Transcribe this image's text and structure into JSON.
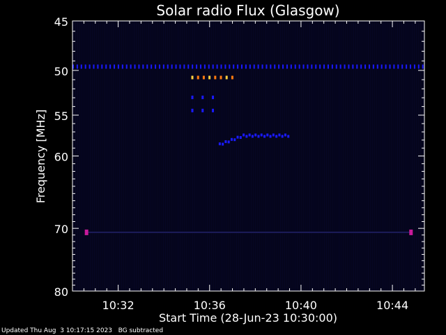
{
  "chart_data": {
    "type": "heatmap",
    "title": "Solar radio Flux (Glasgow)",
    "xlabel": "Start Time (28-Jun-23 10:30:00)",
    "ylabel": "Frequency [MHz]",
    "x_unit": "minutes after 10:30:00",
    "xlim": [
      0,
      15.4
    ],
    "ylim": [
      45,
      80
    ],
    "y_scale": "log",
    "y_inverted": true,
    "x_ticks": [
      {
        "value": 2,
        "label": "10:32"
      },
      {
        "value": 6,
        "label": "10:36"
      },
      {
        "value": 10,
        "label": "10:40"
      },
      {
        "value": 14,
        "label": "10:44"
      }
    ],
    "y_ticks": [
      {
        "value": 45,
        "label": "45"
      },
      {
        "value": 50,
        "label": "50"
      },
      {
        "value": 55,
        "label": "55"
      },
      {
        "value": 60,
        "label": "60"
      },
      {
        "value": 70,
        "label": "70"
      },
      {
        "value": 80,
        "label": "80"
      }
    ],
    "colors": {
      "background": "#000000",
      "plot_area": "#05051c",
      "weak": "#1a1aff",
      "medium": "#4b1dd8",
      "strong": "#ff7a10",
      "peak": "#ffd040",
      "interference": "#c81a9a"
    },
    "features": [
      {
        "name": "interference band",
        "freq_mhz": 49.6,
        "from_min": 0.0,
        "to_min": 15.4,
        "level": "weak"
      },
      {
        "name": "burst",
        "freq_mhz": 50.8,
        "from_min": 5.2,
        "to_min": 7.0,
        "level": "strong"
      },
      {
        "name": "burst",
        "freq_mhz": 53.0,
        "from_min": 5.2,
        "to_min": 6.5,
        "level": "weak"
      },
      {
        "name": "burst",
        "freq_mhz": 54.5,
        "from_min": 5.2,
        "to_min": 6.4,
        "level": "weak"
      },
      {
        "name": "type III drift",
        "freq_start_mhz": 57.5,
        "freq_end_mhz": 58.6,
        "from_min": 6.4,
        "to_min": 9.4,
        "level": "weak"
      },
      {
        "name": "interference band",
        "freq_mhz": 70.6,
        "from_min": 0.6,
        "to_min": 14.8,
        "level": "interference"
      }
    ]
  },
  "footer": {
    "updated": "Updated Thu Aug  3 10:17:15 2023",
    "note": "BG subtracted"
  }
}
